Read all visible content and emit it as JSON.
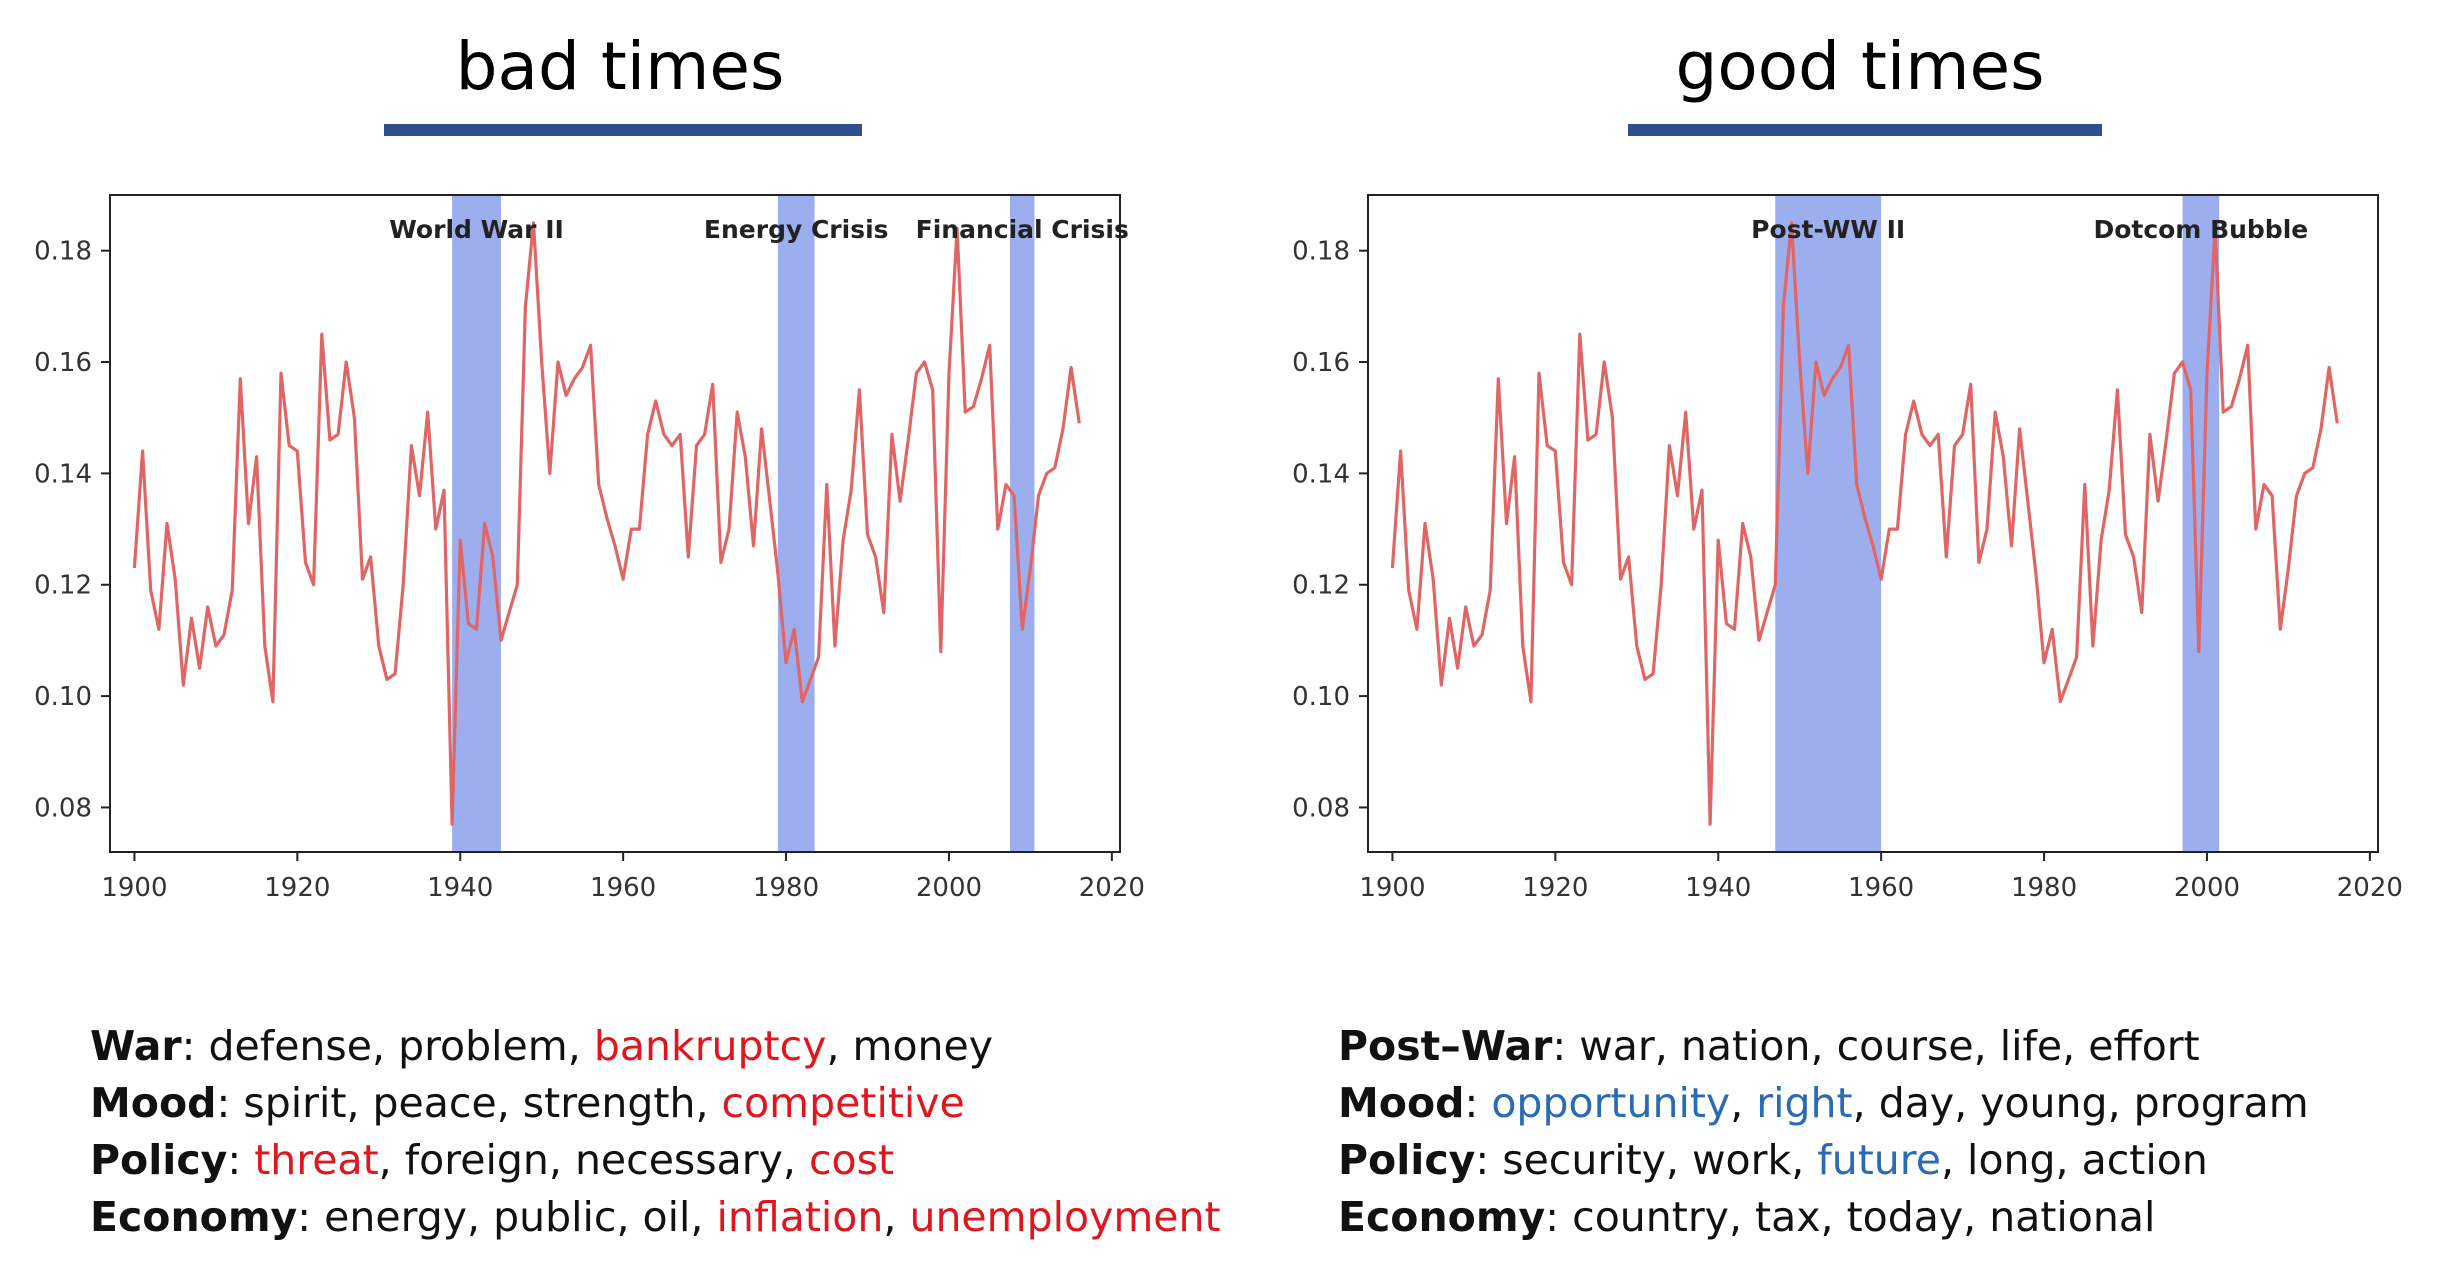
{
  "panels": [
    {
      "title": "bad times",
      "regions": [
        {
          "label": "World War II",
          "start": 1939,
          "end": 1945
        },
        {
          "label": "Energy Crisis",
          "start": 1979,
          "end": 1983.5
        },
        {
          "label": "Financial Crisis",
          "start": 2007.5,
          "end": 2010.5
        }
      ],
      "words": [
        {
          "category": "War",
          "items": [
            {
              "text": "defense",
              "color": "black"
            },
            {
              "text": "problem",
              "color": "black"
            },
            {
              "text": "bankruptcy",
              "color": "red"
            },
            {
              "text": "money",
              "color": "black"
            }
          ]
        },
        {
          "category": "Mood",
          "items": [
            {
              "text": "spirit",
              "color": "black"
            },
            {
              "text": "peace",
              "color": "black"
            },
            {
              "text": "strength",
              "color": "black"
            },
            {
              "text": "competitive",
              "color": "red"
            }
          ]
        },
        {
          "category": "Policy",
          "items": [
            {
              "text": "threat",
              "color": "red"
            },
            {
              "text": "foreign",
              "color": "black"
            },
            {
              "text": "necessary",
              "color": "black"
            },
            {
              "text": "cost",
              "color": "red"
            }
          ]
        },
        {
          "category": "Economy",
          "items": [
            {
              "text": "energy",
              "color": "black"
            },
            {
              "text": "public",
              "color": "black"
            },
            {
              "text": "oil",
              "color": "black"
            },
            {
              "text": "inflation",
              "color": "red"
            },
            {
              "text": "unemployment",
              "color": "red"
            }
          ]
        }
      ]
    },
    {
      "title": "good times",
      "regions": [
        {
          "label": "Post-WW II",
          "start": 1947,
          "end": 1960
        },
        {
          "label": "Dotcom Bubble",
          "start": 1997,
          "end": 2001.5
        }
      ],
      "words": [
        {
          "category": "Post–War",
          "items": [
            {
              "text": "war",
              "color": "black"
            },
            {
              "text": "nation",
              "color": "black"
            },
            {
              "text": "course",
              "color": "black"
            },
            {
              "text": "life",
              "color": "black"
            },
            {
              "text": "effort",
              "color": "black"
            }
          ]
        },
        {
          "category": "Mood",
          "items": [
            {
              "text": "opportunity",
              "color": "blue"
            },
            {
              "text": "right",
              "color": "blue"
            },
            {
              "text": "day",
              "color": "black"
            },
            {
              "text": "young",
              "color": "black"
            },
            {
              "text": "program",
              "color": "black"
            }
          ]
        },
        {
          "category": "Policy",
          "items": [
            {
              "text": "security",
              "color": "black"
            },
            {
              "text": "work",
              "color": "black"
            },
            {
              "text": "future",
              "color": "blue"
            },
            {
              "text": "long",
              "color": "black"
            },
            {
              "text": "action",
              "color": "black"
            }
          ]
        },
        {
          "category": "Economy",
          "items": [
            {
              "text": "country",
              "color": "black"
            },
            {
              "text": "tax",
              "color": "black"
            },
            {
              "text": "today",
              "color": "black"
            },
            {
              "text": "national",
              "color": "black"
            }
          ]
        }
      ]
    }
  ],
  "colors": {
    "line": "#e06666",
    "region": "#9daeee",
    "title_bar": "#2f4f8f",
    "highlight_red": "#e0161e",
    "highlight_blue": "#2a6bb5"
  },
  "chart_data": {
    "type": "line",
    "xlim": [
      1897,
      2021
    ],
    "ylim": [
      0.072,
      0.19
    ],
    "xticks": [
      "1900",
      "1920",
      "1940",
      "1960",
      "1980",
      "2000",
      "2020"
    ],
    "yticks": [
      "0.08",
      "0.10",
      "0.12",
      "0.14",
      "0.16",
      "0.18"
    ],
    "grid": false,
    "x": [
      1900,
      1901,
      1902,
      1903,
      1904,
      1905,
      1906,
      1907,
      1908,
      1909,
      1910,
      1911,
      1912,
      1913,
      1914,
      1915,
      1916,
      1917,
      1918,
      1919,
      1920,
      1921,
      1922,
      1923,
      1924,
      1925,
      1926,
      1927,
      1928,
      1929,
      1930,
      1931,
      1932,
      1933,
      1934,
      1935,
      1936,
      1937,
      1938,
      1939,
      1940,
      1941,
      1942,
      1943,
      1944,
      1945,
      1946,
      1947,
      1948,
      1949,
      1950,
      1951,
      1952,
      1953,
      1954,
      1955,
      1956,
      1957,
      1958,
      1959,
      1960,
      1961,
      1962,
      1963,
      1964,
      1965,
      1966,
      1967,
      1968,
      1969,
      1970,
      1971,
      1972,
      1973,
      1974,
      1975,
      1976,
      1977,
      1978,
      1979,
      1980,
      1981,
      1982,
      1983,
      1984,
      1985,
      1986,
      1987,
      1988,
      1989,
      1990,
      1991,
      1992,
      1993,
      1994,
      1995,
      1996,
      1997,
      1998,
      1999,
      2000,
      2001,
      2002,
      2003,
      2004,
      2005,
      2006,
      2007,
      2008,
      2009,
      2010,
      2011,
      2012,
      2013,
      2014,
      2015,
      2016
    ],
    "y": [
      0.123,
      0.144,
      0.119,
      0.112,
      0.131,
      0.121,
      0.102,
      0.114,
      0.105,
      0.116,
      0.109,
      0.111,
      0.119,
      0.157,
      0.131,
      0.143,
      0.109,
      0.099,
      0.158,
      0.145,
      0.144,
      0.124,
      0.12,
      0.165,
      0.146,
      0.147,
      0.16,
      0.15,
      0.121,
      0.125,
      0.109,
      0.103,
      0.104,
      0.12,
      0.145,
      0.136,
      0.151,
      0.13,
      0.137,
      0.077,
      0.128,
      0.113,
      0.112,
      0.131,
      0.125,
      0.11,
      0.115,
      0.12,
      0.17,
      0.185,
      0.16,
      0.14,
      0.16,
      0.154,
      0.157,
      0.159,
      0.163,
      0.138,
      0.132,
      0.127,
      0.121,
      0.13,
      0.13,
      0.147,
      0.153,
      0.147,
      0.145,
      0.147,
      0.125,
      0.145,
      0.147,
      0.156,
      0.124,
      0.13,
      0.151,
      0.143,
      0.127,
      0.148,
      0.135,
      0.122,
      0.106,
      0.112,
      0.099,
      0.103,
      0.107,
      0.138,
      0.109,
      0.128,
      0.137,
      0.155,
      0.129,
      0.125,
      0.115,
      0.147,
      0.135,
      0.146,
      0.158,
      0.16,
      0.155,
      0.108,
      0.158,
      0.184,
      0.151,
      0.152,
      0.157,
      0.163,
      0.13,
      0.138,
      0.136,
      0.112,
      0.123,
      0.136,
      0.14,
      0.141,
      0.148,
      0.159,
      0.149
    ]
  }
}
